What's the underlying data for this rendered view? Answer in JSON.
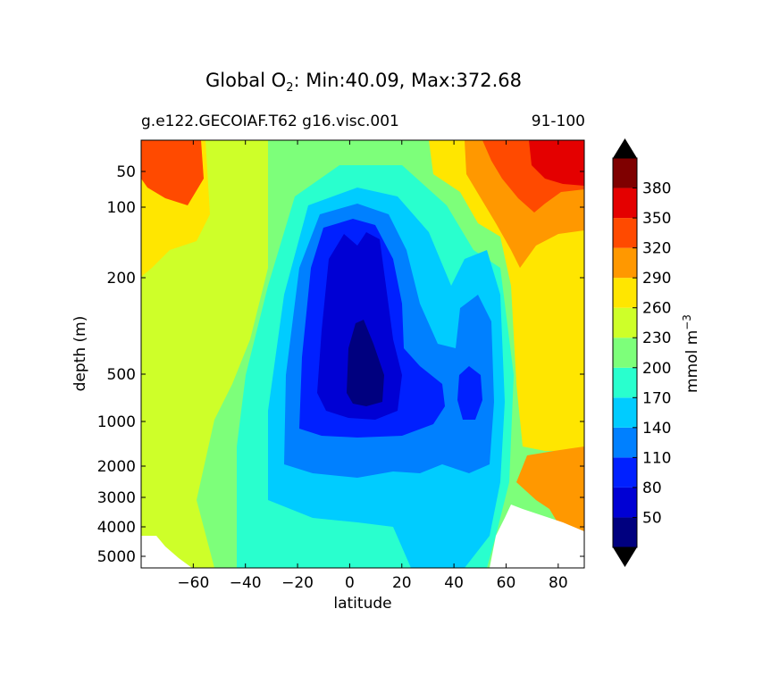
{
  "chart_data": {
    "type": "heatmap",
    "title": "Global O",
    "title_sub": "2",
    "title_rest": ": Min:40.09, Max:372.68",
    "subtitle_left": "g.e122.GECOIAF.T62 g16.visc.001",
    "subtitle_right": "91-100",
    "xlabel": "latitude",
    "ylabel": "depth (m)",
    "xlim": [
      -80,
      90
    ],
    "x_ticks": [
      -60,
      -40,
      -20,
      0,
      20,
      40,
      60,
      80
    ],
    "x_tick_labels": [
      "−60",
      "−40",
      "−20",
      "0",
      "20",
      "40",
      "60",
      "80"
    ],
    "y_ticks": [
      50,
      100,
      200,
      500,
      1000,
      2000,
      3000,
      4000,
      5000
    ],
    "y_tick_labels": [
      "50",
      "100",
      "200",
      "500",
      "1000",
      "2000",
      "3000",
      "4000",
      "5000"
    ],
    "colorbar": {
      "label": "mmol m",
      "label_sup": "−3",
      "levels": [
        20,
        50,
        80,
        110,
        140,
        170,
        200,
        230,
        260,
        290,
        320,
        350,
        380,
        410
      ],
      "tick_labels": [
        "50",
        "80",
        "110",
        "140",
        "170",
        "200",
        "230",
        "260",
        "290",
        "320",
        "350",
        "380"
      ],
      "colors": [
        "#00007f",
        "#0000d4",
        "#0020ff",
        "#0080ff",
        "#00ccff",
        "#29ffce",
        "#7dff7a",
        "#ceff29",
        "#ffe600",
        "#ff9800",
        "#ff4a00",
        "#e40000",
        "#7f0000"
      ],
      "extend_low": "#000000",
      "extend_high": "#000000"
    },
    "min": 40.09,
    "max": 372.68
  }
}
